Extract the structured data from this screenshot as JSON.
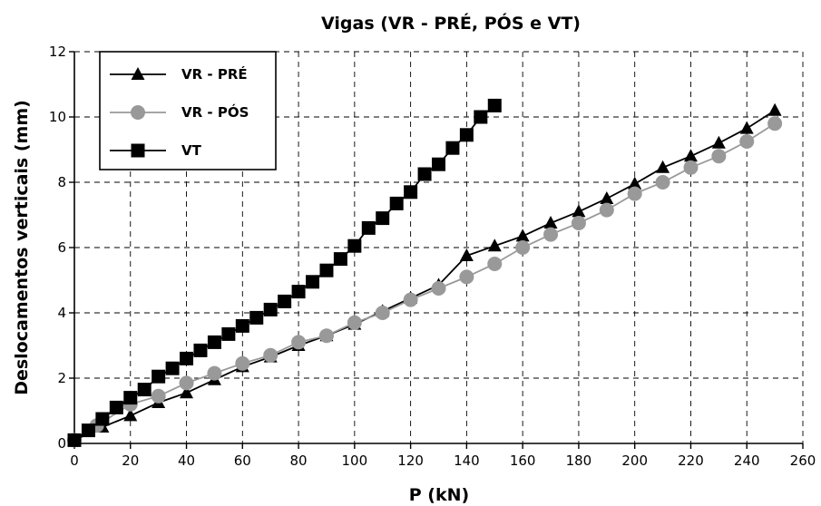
{
  "chart_data": {
    "type": "line",
    "title": "Vigas (VR - PRÉ, PÓS e VT)",
    "xlabel": "P (kN)",
    "ylabel": "Deslocamentos verticais (mm)",
    "xlim": [
      0,
      260
    ],
    "ylim": [
      0,
      12
    ],
    "xticks": [
      0,
      20,
      40,
      60,
      80,
      100,
      120,
      140,
      160,
      180,
      200,
      220,
      240,
      260
    ],
    "yticks": [
      0,
      2,
      4,
      6,
      8,
      10,
      12
    ],
    "grid": true,
    "legend_position": "top-left",
    "series": [
      {
        "name": "VR - PRÉ",
        "marker": "triangle",
        "color": "#000000",
        "marker_color": "#000000",
        "x": [
          0,
          10,
          20,
          30,
          40,
          50,
          60,
          70,
          80,
          90,
          100,
          110,
          120,
          130,
          140,
          150,
          160,
          170,
          180,
          190,
          200,
          210,
          220,
          230,
          240,
          250
        ],
        "y": [
          0.1,
          0.5,
          0.85,
          1.25,
          1.55,
          1.95,
          2.35,
          2.65,
          3.0,
          3.3,
          3.65,
          4.05,
          4.45,
          4.85,
          5.75,
          6.05,
          6.35,
          6.75,
          7.1,
          7.5,
          7.95,
          8.45,
          8.8,
          9.2,
          9.65,
          10.2
        ]
      },
      {
        "name": "VR - PÓS",
        "marker": "circle",
        "color": "#999999",
        "marker_color": "#999999",
        "x": [
          0,
          8,
          20,
          30,
          40,
          50,
          60,
          70,
          80,
          90,
          100,
          110,
          120,
          130,
          140,
          150,
          160,
          170,
          180,
          190,
          200,
          210,
          220,
          230,
          240,
          250
        ],
        "y": [
          0.1,
          0.55,
          1.2,
          1.45,
          1.85,
          2.15,
          2.45,
          2.7,
          3.1,
          3.3,
          3.7,
          4.0,
          4.4,
          4.75,
          5.1,
          5.5,
          6.0,
          6.4,
          6.75,
          7.15,
          7.65,
          8.0,
          8.45,
          8.8,
          9.25,
          9.8
        ]
      },
      {
        "name": "VT",
        "marker": "square",
        "color": "#000000",
        "marker_color": "#000000",
        "x": [
          0,
          5,
          10,
          15,
          20,
          25,
          30,
          35,
          40,
          45,
          50,
          55,
          60,
          65,
          70,
          75,
          80,
          85,
          90,
          95,
          100,
          105,
          110,
          115,
          120,
          125,
          130,
          135,
          140,
          145,
          150
        ],
        "y": [
          0.1,
          0.4,
          0.75,
          1.1,
          1.4,
          1.65,
          2.05,
          2.3,
          2.6,
          2.85,
          3.1,
          3.35,
          3.6,
          3.85,
          4.1,
          4.35,
          4.65,
          4.95,
          5.3,
          5.65,
          6.05,
          6.6,
          6.9,
          7.35,
          7.7,
          8.25,
          8.55,
          9.05,
          9.45,
          10.0,
          10.35
        ]
      }
    ]
  }
}
